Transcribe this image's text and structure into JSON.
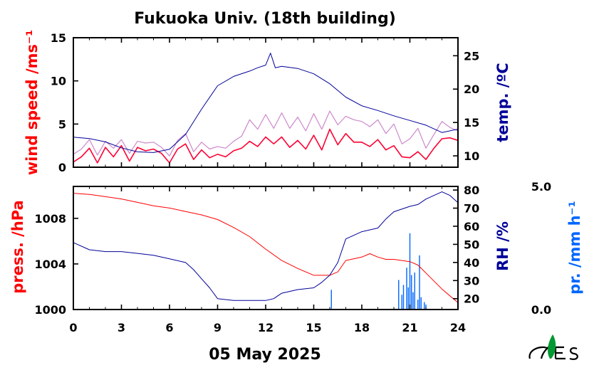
{
  "chart_data": [
    {
      "type": "line",
      "title": "Fukuoka Univ. (18th building)",
      "xlabel": "05 May 2025",
      "x_ticks": [
        "0",
        "3",
        "6",
        "9",
        "12",
        "15",
        "18",
        "21",
        "24"
      ],
      "xlim": [
        0,
        24
      ],
      "y_left": {
        "label": "wind speed /ms⁻¹",
        "ylim": [
          0,
          15
        ],
        "ticks": [
          "0",
          "5",
          "10",
          "15"
        ],
        "color": "#ff0000"
      },
      "y_right": {
        "label": "temp. /ºC",
        "ylim": [
          8.3,
          27.7
        ],
        "ticks": [
          "10",
          "15",
          "20",
          "25"
        ],
        "color": "#000099"
      },
      "series": [
        {
          "axis": "left",
          "color": "#ff0033",
          "x": [
            0,
            0.5,
            1,
            1.5,
            2,
            2.5,
            3,
            3.5,
            4,
            4.5,
            5,
            5.5,
            6,
            6.5,
            7,
            7.5,
            8,
            8.5,
            9,
            9.5,
            10,
            10.5,
            11,
            11.5,
            12,
            12.5,
            13,
            13.5,
            14,
            14.5,
            15,
            15.5,
            16,
            16.5,
            17,
            17.5,
            18,
            18.5,
            19,
            19.5,
            20,
            20.5,
            21,
            21.5,
            22,
            22.5,
            23,
            23.5,
            24
          ],
          "values": [
            0.6,
            1.2,
            2.2,
            0.5,
            2.3,
            1.2,
            2.5,
            0.7,
            2.3,
            1.9,
            2.1,
            1.6,
            0.5,
            2.1,
            2.7,
            0.9,
            2.0,
            1.1,
            1.5,
            1.2,
            1.9,
            2.2,
            3.0,
            2.4,
            3.5,
            2.7,
            3.5,
            2.3,
            3.1,
            2.1,
            3.7,
            2.0,
            4.4,
            2.6,
            3.9,
            2.9,
            2.9,
            2.4,
            3.2,
            2.0,
            2.5,
            1.2,
            1.1,
            1.8,
            0.9,
            2.2,
            3.3,
            3.4,
            3.1
          ]
        },
        {
          "axis": "left",
          "color": "#cc88cc",
          "x": [
            0,
            0.5,
            1,
            1.5,
            2,
            2.5,
            3,
            3.5,
            4,
            4.5,
            5,
            5.5,
            6,
            6.5,
            7,
            7.5,
            8,
            8.5,
            9,
            9.5,
            10,
            10.5,
            11,
            11.5,
            12,
            12.5,
            13,
            13.5,
            14,
            14.5,
            15,
            15.5,
            16,
            16.5,
            17,
            17.5,
            18,
            18.5,
            19,
            19.5,
            20,
            20.5,
            21,
            21.5,
            22,
            22.5,
            23,
            23.5,
            24
          ],
          "values": [
            1.5,
            2.1,
            3.2,
            1.4,
            3.0,
            2.2,
            3.2,
            1.6,
            3.0,
            2.8,
            2.9,
            2.3,
            1.3,
            3.1,
            3.9,
            1.8,
            2.9,
            2.1,
            2.4,
            2.2,
            3.0,
            3.6,
            5.5,
            4.4,
            6.1,
            4.5,
            6.3,
            4.5,
            5.8,
            4.2,
            6.2,
            4.4,
            6.5,
            4.9,
            5.9,
            5.5,
            5.3,
            4.7,
            5.5,
            3.9,
            5.0,
            2.7,
            3.3,
            4.5,
            2.2,
            3.8,
            5.3,
            4.6,
            4.2
          ]
        },
        {
          "axis": "right",
          "color": "#000099",
          "x": [
            0,
            1,
            2,
            3,
            4,
            5,
            6,
            7,
            8,
            9,
            10,
            11,
            11.5,
            12,
            12.3,
            12.6,
            13,
            14,
            15,
            16,
            17,
            18,
            19,
            20,
            21,
            22,
            23,
            24
          ],
          "values": [
            12.8,
            12.6,
            12.1,
            11.2,
            10.6,
            10.5,
            11.0,
            13.2,
            17.0,
            20.5,
            21.9,
            22.7,
            23.2,
            23.6,
            25.4,
            23.2,
            23.4,
            23.1,
            22.3,
            20.8,
            18.8,
            17.5,
            16.8,
            16.0,
            15.3,
            14.6,
            13.5,
            14.0
          ]
        }
      ]
    },
    {
      "type": "line",
      "xlabel": "05 May 2025",
      "x_ticks": [
        "0",
        "3",
        "6",
        "9",
        "12",
        "15",
        "18",
        "21",
        "24"
      ],
      "xlim": [
        0,
        24
      ],
      "y_left": {
        "label": "press. /hPa",
        "ylim": [
          1000,
          1010.8
        ],
        "ticks": [
          "1000",
          "1004",
          "1008"
        ],
        "color": "#ff0000"
      },
      "y_right": {
        "label": "RH /%",
        "ylim": [
          14,
          82
        ],
        "ticks": [
          "20",
          "30",
          "40",
          "50",
          "60",
          "70",
          "80"
        ],
        "color": "#000099"
      },
      "y_far_right": {
        "label": "pr. /mm h⁻¹",
        "ticks": [
          "0.0",
          "5.0"
        ],
        "ylim": [
          0,
          5
        ],
        "color": "#0066ff"
      },
      "series": [
        {
          "axis": "left",
          "color": "#ff0000",
          "x": [
            0,
            1,
            2,
            3,
            4,
            5,
            6,
            7,
            8,
            9,
            10,
            11,
            12,
            13,
            14,
            15,
            16,
            16.5,
            17,
            18,
            18.5,
            19,
            19.5,
            20,
            21,
            21.5,
            22,
            23,
            24
          ],
          "values": [
            1010.2,
            1010.1,
            1009.9,
            1009.7,
            1009.4,
            1009.1,
            1008.9,
            1008.6,
            1008.3,
            1007.9,
            1007.2,
            1006.4,
            1005.3,
            1004.3,
            1003.6,
            1003.0,
            1003.0,
            1003.3,
            1004.3,
            1004.6,
            1004.9,
            1004.6,
            1004.4,
            1004.4,
            1004.2,
            1003.9,
            1003.2,
            1001.8,
            1000.6
          ]
        },
        {
          "axis": "right",
          "color": "#000099",
          "x": [
            0,
            1,
            2,
            3,
            4,
            5,
            6,
            7,
            7.5,
            8,
            8.5,
            9,
            10,
            11,
            12,
            12.5,
            13,
            14,
            15,
            15.5,
            16,
            16.5,
            17,
            18,
            19,
            19.5,
            20,
            21,
            21.5,
            22,
            23,
            23.5,
            24
          ],
          "values": [
            51,
            47,
            46,
            46,
            45,
            44,
            42,
            40,
            36,
            31,
            26,
            20,
            19,
            19,
            19,
            20,
            23,
            25,
            26,
            29,
            33,
            40,
            53,
            57,
            59,
            64,
            68,
            71,
            72,
            75,
            79,
            77,
            73
          ]
        },
        {
          "type": "bar",
          "axis": "far_right",
          "color": "#0066ff",
          "x": [
            16.1,
            20.3,
            20.5,
            20.6,
            20.8,
            20.9,
            21.0,
            21.1,
            21.2,
            21.3,
            21.5,
            21.6,
            21.7,
            21.9,
            22.0
          ],
          "values": [
            0.8,
            1.2,
            0.6,
            1.0,
            1.7,
            0.9,
            3.1,
            1.4,
            0.7,
            1.5,
            0.4,
            2.2,
            0.5,
            0.3,
            0.2
          ]
        }
      ]
    }
  ]
}
